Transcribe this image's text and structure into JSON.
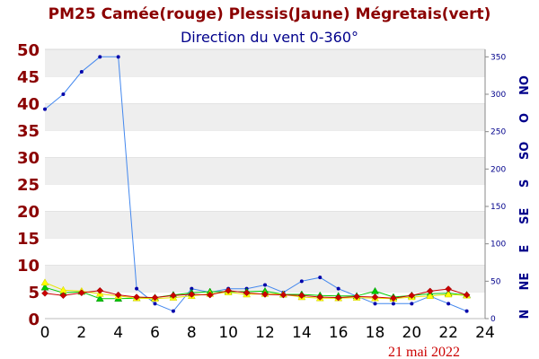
{
  "chart_data": {
    "type": "line",
    "title": "PM25 Camée(rouge) Plessis(Jaune) Mégretais(vert)",
    "subtitle": "Direction du vent 0-360°",
    "date": "21 mai 2022",
    "x_ticks": [
      "0",
      "2",
      "4",
      "6",
      "8",
      "10",
      "12",
      "14",
      "16",
      "18",
      "20",
      "22",
      "24"
    ],
    "xlim": [
      0,
      24
    ],
    "ylim_left": [
      0,
      50
    ],
    "ylim_right": [
      0,
      360
    ],
    "y_ticks_left": [
      "0",
      "5",
      "10",
      "15",
      "20",
      "25",
      "30",
      "35",
      "40",
      "45",
      "50"
    ],
    "y_ticks_right": [
      "0",
      "50",
      "100",
      "150",
      "200",
      "250",
      "300",
      "350"
    ],
    "direction_labels": [
      "N",
      "NE",
      "E",
      "SE",
      "S",
      "SO",
      "O",
      "NO"
    ],
    "grid": "horizontal bands",
    "colors": {
      "title": "#8b0000",
      "subtitle": "#00008b",
      "left_axis": "#8b0000",
      "right_axis": "#00008b",
      "band": "#eeeeee",
      "camee": "#cc0000",
      "plessis": "#ffff00",
      "megretais": "#00cc00",
      "wind": "#4488ee",
      "date": "#cc0000"
    },
    "series": [
      {
        "key": "camee",
        "axis": "left",
        "x": [
          0,
          1,
          2,
          3,
          4,
          5,
          6,
          7,
          8,
          9,
          10,
          11,
          12,
          13,
          14,
          15,
          16,
          17,
          18,
          19,
          20,
          21,
          22,
          23
        ],
        "values": [
          4.7,
          4.3,
          4.8,
          5.2,
          4.4,
          4.0,
          3.9,
          4.3,
          4.5,
          4.4,
          5.2,
          4.8,
          4.5,
          4.4,
          4.3,
          4.0,
          3.9,
          4.1,
          4.0,
          3.8,
          4.3,
          5.1,
          5.5,
          4.4
        ]
      },
      {
        "key": "plessis",
        "axis": "left",
        "x": [
          0,
          1,
          2,
          3,
          4,
          5,
          6,
          7,
          8,
          9,
          10,
          11,
          12,
          13,
          14,
          15,
          16,
          17,
          18,
          19,
          20,
          21,
          22,
          23
        ],
        "values": [
          6.7,
          5.3,
          5.1,
          4.6,
          4.2,
          3.8,
          3.7,
          3.9,
          4.2,
          4.6,
          4.9,
          4.5,
          4.6,
          4.5,
          4.0,
          3.8,
          3.8,
          3.9,
          3.8,
          3.7,
          4.0,
          4.2,
          4.5,
          4.3
        ]
      },
      {
        "key": "megretais",
        "axis": "left",
        "x": [
          0,
          1,
          2,
          3,
          4,
          5,
          6,
          7,
          8,
          9,
          10,
          11,
          12,
          13,
          14,
          15,
          16,
          17,
          18,
          19,
          20,
          21,
          22,
          23
        ],
        "values": [
          5.8,
          4.8,
          5.0,
          3.7,
          3.7,
          3.8,
          3.9,
          4.4,
          4.8,
          5.0,
          5.0,
          5.0,
          5.1,
          4.5,
          4.5,
          4.3,
          4.2,
          4.2,
          5.1,
          4.0,
          4.3,
          4.6,
          4.7,
          4.4
        ]
      },
      {
        "key": "wind",
        "axis": "right",
        "x": [
          0,
          1,
          2,
          3,
          4,
          5,
          6,
          7,
          8,
          9,
          10,
          11,
          12,
          13,
          14,
          15,
          16,
          17,
          18,
          19,
          20,
          21,
          22,
          23
        ],
        "values": [
          280,
          300,
          330,
          350,
          350,
          40,
          20,
          10,
          40,
          35,
          40,
          40,
          45,
          35,
          50,
          55,
          40,
          30,
          20,
          20,
          20,
          30,
          20,
          10
        ]
      }
    ]
  }
}
